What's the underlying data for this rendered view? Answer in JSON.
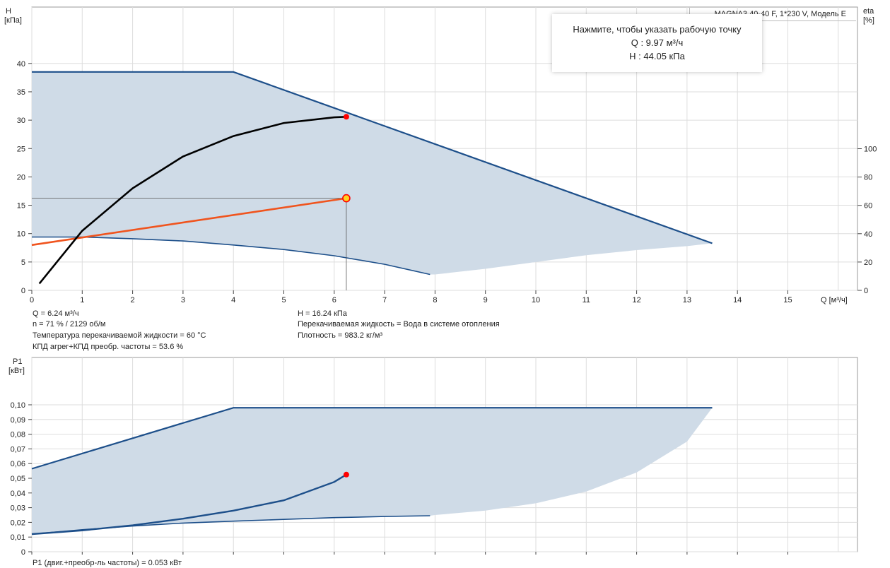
{
  "colors": {
    "area_fill": "#cfdbe7",
    "area_edge": "#1d4f8a",
    "system_curve": "#f0541e",
    "pump_curve": "#000000",
    "duty_point": "#ff0000",
    "duty_point_highlight": "#ffd21f",
    "grid": "#dddddd"
  },
  "tooltip": {
    "line1": "Нажмите, чтобы указать рабочую точку",
    "line2": "Q : 9.97 м³/ч",
    "line3": "H : 44.05 кПа"
  },
  "model_label": "MAGNA3 40-40 F, 1*230 V, Модель E",
  "info": {
    "q": "Q = 6.24 м³/ч",
    "n": "n = 71 % / 2129 об/м",
    "temp": "Температура перекачиваемой жидкости = 60 °C",
    "eff": "КПД агрег+КПД преобр. частоты = 53.6 %",
    "h": "H = 16.24 кПа",
    "liquid": "Перекачиваемая жидкость = Вода в системе отопления",
    "density": "Плотность = 983.2 кг/м³",
    "p1": "P1 (двиг.+преобр-ль частоты) = 0.053 кВт"
  },
  "chart_data": [
    {
      "type": "area",
      "title": "",
      "ylabel": "H",
      "ylabel_unit": "[кПа]",
      "y2label": "eta",
      "y2label_unit": "[%]",
      "xlabel": "Q [м³/ч]",
      "xlim": [
        0,
        16
      ],
      "ylim": [
        0,
        45
      ],
      "y2lim": [
        0,
        100
      ],
      "x_ticks": [
        0,
        1,
        2,
        3,
        4,
        5,
        6,
        7,
        8,
        9,
        10,
        11,
        12,
        13,
        14,
        15
      ],
      "y_ticks": [
        0,
        5,
        10,
        15,
        20,
        25,
        30,
        35,
        40
      ],
      "y2_ticks": [
        0,
        20,
        40,
        60,
        80,
        100
      ],
      "grid": true,
      "envelope_upper": [
        [
          0,
          38.5
        ],
        [
          4,
          38.5
        ],
        [
          13.5,
          8.3
        ]
      ],
      "envelope_lower": [
        [
          0,
          9.3
        ],
        [
          1,
          9.3
        ],
        [
          2,
          9.0
        ],
        [
          3,
          8.6
        ],
        [
          4,
          8.0
        ],
        [
          5,
          7.2
        ],
        [
          6,
          6.1
        ],
        [
          7,
          4.6
        ],
        [
          7.9,
          2.8
        ],
        [
          8,
          2.8
        ],
        [
          9,
          3.8
        ],
        [
          10,
          5.0
        ],
        [
          11,
          6.2
        ],
        [
          12,
          7.1
        ],
        [
          13,
          7.8
        ],
        [
          13.5,
          8.3
        ]
      ],
      "series": [
        {
          "role": "min-curve",
          "points": [
            [
              0,
              9.4
            ],
            [
              1,
              9.4
            ],
            [
              2,
              9.1
            ],
            [
              3,
              8.7
            ],
            [
              4,
              8.0
            ],
            [
              5,
              7.2
            ],
            [
              6,
              6.1
            ],
            [
              7,
              4.6
            ],
            [
              7.9,
              2.8
            ]
          ]
        },
        {
          "role": "max-curve",
          "points": [
            [
              0,
              38.5
            ],
            [
              4,
              38.5
            ],
            [
              13.5,
              8.3
            ]
          ]
        },
        {
          "role": "system-curve",
          "points": [
            [
              0,
              8.0
            ],
            [
              6.24,
              16.24
            ]
          ]
        },
        {
          "role": "efficiency",
          "points": [
            [
              0.15,
              1.2
            ],
            [
              1,
              10.5
            ],
            [
              2,
              18
            ],
            [
              3,
              23.6
            ],
            [
              4,
              27.2
            ],
            [
              5,
              29.5
            ],
            [
              6,
              30.5
            ],
            [
              6.24,
              30.6
            ]
          ]
        }
      ],
      "duty_point": {
        "q": 6.24,
        "h": 16.24
      },
      "eta_point": {
        "q": 6.24,
        "eta": 30.6
      }
    },
    {
      "type": "area",
      "title": "",
      "ylabel": "P1",
      "ylabel_unit": "[кВт]",
      "xlim": [
        0,
        16
      ],
      "ylim": [
        0,
        0.105
      ],
      "y_ticks": [
        "0",
        "0,01",
        "0,02",
        "0,03",
        "0,04",
        "0,05",
        "0,06",
        "0,07",
        "0,08",
        "0,09",
        "0,10"
      ],
      "y_tick_values": [
        0,
        0.01,
        0.02,
        0.03,
        0.04,
        0.05,
        0.06,
        0.07,
        0.08,
        0.09,
        0.1
      ],
      "x_ticks": [
        0,
        1,
        2,
        3,
        4,
        5,
        6,
        7,
        8,
        9,
        10,
        11,
        12,
        13,
        14,
        15
      ],
      "grid": true,
      "envelope_upper": [
        [
          0,
          0.0565
        ],
        [
          4,
          0.098
        ],
        [
          13.5,
          0.098
        ]
      ],
      "envelope_lower": [
        [
          0,
          0.012
        ],
        [
          1,
          0.015
        ],
        [
          2,
          0.0175
        ],
        [
          3,
          0.0195
        ],
        [
          4,
          0.0208
        ],
        [
          5,
          0.022
        ],
        [
          6,
          0.0232
        ],
        [
          7,
          0.024
        ],
        [
          7.9,
          0.0245
        ],
        [
          8,
          0.025
        ],
        [
          9,
          0.028
        ],
        [
          10,
          0.033
        ],
        [
          11,
          0.041
        ],
        [
          12,
          0.054
        ],
        [
          13,
          0.075
        ],
        [
          13.5,
          0.098
        ]
      ],
      "series": [
        {
          "role": "min-curve",
          "points": [
            [
              0,
              0.012
            ],
            [
              1,
              0.015
            ],
            [
              2,
              0.0175
            ],
            [
              3,
              0.0195
            ],
            [
              4,
              0.0208
            ],
            [
              5,
              0.022
            ],
            [
              6,
              0.0232
            ],
            [
              7,
              0.024
            ],
            [
              7.9,
              0.0245
            ]
          ]
        },
        {
          "role": "max-curve",
          "points": [
            [
              0,
              0.0565
            ],
            [
              4,
              0.098
            ],
            [
              13.5,
              0.098
            ]
          ]
        },
        {
          "role": "power-curve",
          "points": [
            [
              0,
              0.012
            ],
            [
              1,
              0.0145
            ],
            [
              2,
              0.018
            ],
            [
              3,
              0.0225
            ],
            [
              4,
              0.028
            ],
            [
              5,
              0.035
            ],
            [
              6,
              0.0475
            ],
            [
              6.24,
              0.0525
            ]
          ]
        }
      ],
      "duty_point": {
        "q": 6.24,
        "p1": 0.0525
      }
    }
  ]
}
